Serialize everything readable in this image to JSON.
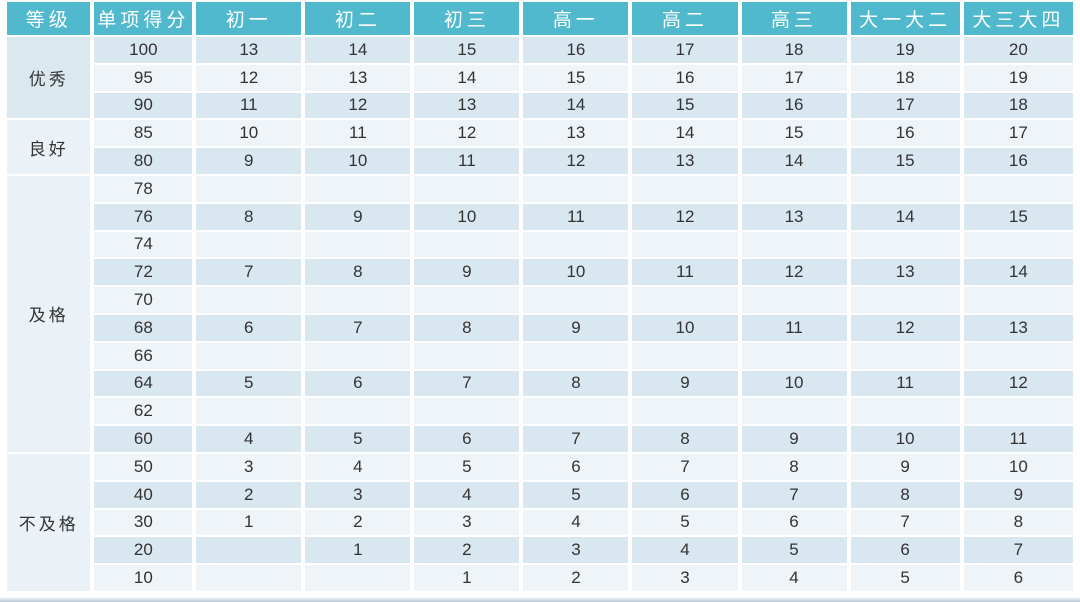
{
  "colors": {
    "header_bg": "#50B9CD",
    "header_text": "#FFFFFF",
    "row_dark": "#D9E7F1",
    "row_light": "#EEF4F8",
    "category_dark": "#DCE8F0",
    "category_light": "#EBF2F7",
    "cell_text": "#333333"
  },
  "chart_data": {
    "type": "table",
    "headers": [
      "等级",
      "单项得分",
      "初一",
      "初二",
      "初三",
      "高一",
      "高二",
      "高三",
      "大一大二",
      "大三大四"
    ],
    "column_widths_percent": [
      8.1,
      9.5,
      10.2,
      10.2,
      10.2,
      10.2,
      10.2,
      10.2,
      10.6,
      10.6
    ],
    "groups": [
      {
        "label": "优秀",
        "shade": "dark",
        "rows": [
          {
            "score": "100",
            "values": [
              "13",
              "14",
              "15",
              "16",
              "17",
              "18",
              "19",
              "20"
            ]
          },
          {
            "score": "95",
            "values": [
              "12",
              "13",
              "14",
              "15",
              "16",
              "17",
              "18",
              "19"
            ]
          },
          {
            "score": "90",
            "values": [
              "11",
              "12",
              "13",
              "14",
              "15",
              "16",
              "17",
              "18"
            ]
          }
        ]
      },
      {
        "label": "良好",
        "shade": "light",
        "rows": [
          {
            "score": "85",
            "values": [
              "10",
              "11",
              "12",
              "13",
              "14",
              "15",
              "16",
              "17"
            ]
          },
          {
            "score": "80",
            "values": [
              "9",
              "10",
              "11",
              "12",
              "13",
              "14",
              "15",
              "16"
            ]
          }
        ]
      },
      {
        "label": "及格",
        "shade": "light",
        "rows": [
          {
            "score": "78",
            "values": [
              "",
              "",
              "",
              "",
              "",
              "",
              "",
              ""
            ]
          },
          {
            "score": "76",
            "values": [
              "8",
              "9",
              "10",
              "11",
              "12",
              "13",
              "14",
              "15"
            ]
          },
          {
            "score": "74",
            "values": [
              "",
              "",
              "",
              "",
              "",
              "",
              "",
              ""
            ]
          },
          {
            "score": "72",
            "values": [
              "7",
              "8",
              "9",
              "10",
              "11",
              "12",
              "13",
              "14"
            ]
          },
          {
            "score": "70",
            "values": [
              "",
              "",
              "",
              "",
              "",
              "",
              "",
              ""
            ]
          },
          {
            "score": "68",
            "values": [
              "6",
              "7",
              "8",
              "9",
              "10",
              "11",
              "12",
              "13"
            ]
          },
          {
            "score": "66",
            "values": [
              "",
              "",
              "",
              "",
              "",
              "",
              "",
              ""
            ]
          },
          {
            "score": "64",
            "values": [
              "5",
              "6",
              "7",
              "8",
              "9",
              "10",
              "11",
              "12"
            ]
          },
          {
            "score": "62",
            "values": [
              "",
              "",
              "",
              "",
              "",
              "",
              "",
              ""
            ]
          },
          {
            "score": "60",
            "values": [
              "4",
              "5",
              "6",
              "7",
              "8",
              "9",
              "10",
              "11"
            ]
          }
        ]
      },
      {
        "label": "不及格",
        "shade": "light",
        "rows": [
          {
            "score": "50",
            "values": [
              "3",
              "4",
              "5",
              "6",
              "7",
              "8",
              "9",
              "10"
            ]
          },
          {
            "score": "40",
            "values": [
              "2",
              "3",
              "4",
              "5",
              "6",
              "7",
              "8",
              "9"
            ]
          },
          {
            "score": "30",
            "values": [
              "1",
              "2",
              "3",
              "4",
              "5",
              "6",
              "7",
              "8"
            ]
          },
          {
            "score": "20",
            "values": [
              "",
              "1",
              "2",
              "3",
              "4",
              "5",
              "6",
              "7"
            ]
          },
          {
            "score": "10",
            "values": [
              "",
              "",
              "1",
              "2",
              "3",
              "4",
              "5",
              "6"
            ]
          }
        ]
      }
    ]
  }
}
